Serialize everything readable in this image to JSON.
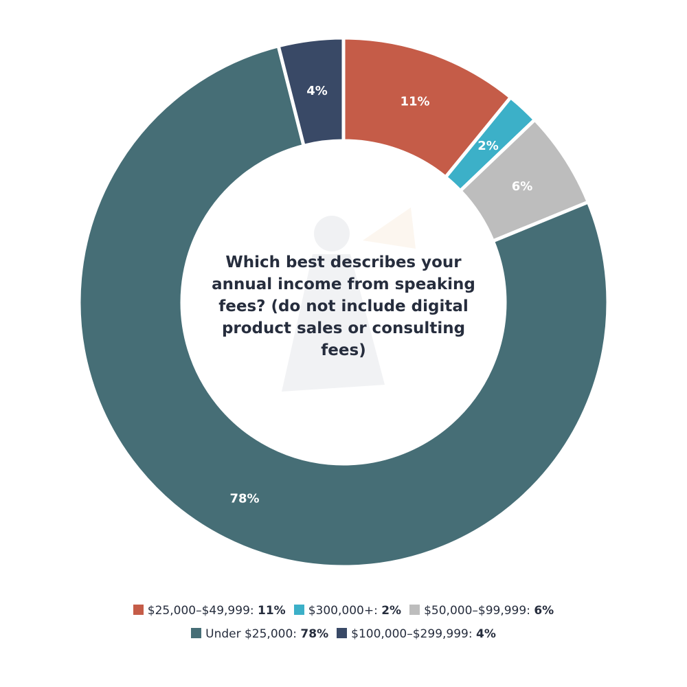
{
  "chart_data": {
    "type": "pie",
    "donut": true,
    "title": "Which best describes your annual income from speaking fees? (do not include digital product sales or consulting fees)",
    "slices": [
      {
        "label": "$25,000–$49,999",
        "value": 11,
        "display": "11%",
        "color": "#c55c48"
      },
      {
        "label": "$300,000+",
        "value": 2,
        "display": "2%",
        "color": "#3cb0c8"
      },
      {
        "label": "$50,000–$99,999",
        "value": 6,
        "display": "6%",
        "color": "#bdbdbd"
      },
      {
        "label": "Under $25,000",
        "value": 78,
        "display": "78%",
        "color": "#466e76"
      },
      {
        "label": "$100,000–$299,999",
        "value": 4,
        "display": "4%",
        "color": "#394966"
      }
    ],
    "legend_position": "bottom",
    "legend_rows": [
      [
        0,
        1,
        2
      ],
      [
        3,
        4
      ]
    ]
  }
}
